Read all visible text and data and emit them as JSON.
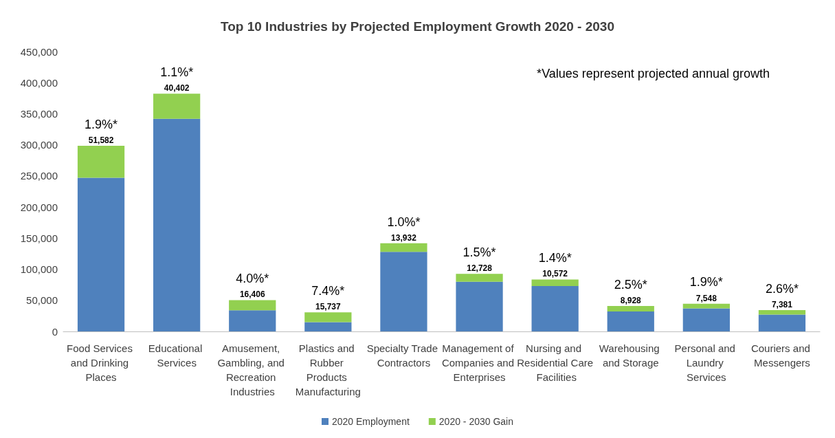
{
  "chart_data": {
    "type": "bar",
    "title": "Top 10 Industries by Projected Employment Growth 2020 - 2030",
    "categories": [
      "Food Services and Drinking Places",
      "Educational Services",
      "Amusement, Gambling, and Recreation Industries",
      "Plastics and Rubber Products Manufacturing",
      "Specialty Trade Contractors",
      "Management of Companies and Enterprises",
      "Nursing and Residential Care Facilities",
      "Warehousing and Storage",
      "Personal and Laundry Services",
      "Couriers and Messengers"
    ],
    "stacked": true,
    "series": [
      {
        "name": "2020 Employment",
        "color": "#4f81bd",
        "values": [
          247000,
          342000,
          34000,
          15000,
          128000,
          80000,
          73000,
          32000,
          37000,
          27000
        ]
      },
      {
        "name": "2020 - 2030 Gain",
        "color": "#92d050",
        "values": [
          51582,
          40402,
          16406,
          15737,
          13932,
          12728,
          10572,
          8928,
          7548,
          7381
        ],
        "value_labels": [
          "51,582",
          "40,402",
          "16,406",
          "15,737",
          "13,932",
          "12,728",
          "10,572",
          "8,928",
          "7,548",
          "7,381"
        ]
      }
    ],
    "ylim": [
      0,
      450000
    ],
    "yticks": [
      {
        "value": 0,
        "label": "0"
      },
      {
        "value": 50000,
        "label": "50,000"
      },
      {
        "value": 100000,
        "label": "100,000"
      },
      {
        "value": 150000,
        "label": "150,000"
      },
      {
        "value": 200000,
        "label": "200,000"
      },
      {
        "value": 250000,
        "label": "250,000"
      },
      {
        "value": 300000,
        "label": "300,000"
      },
      {
        "value": 350000,
        "label": "350,000"
      },
      {
        "value": 400000,
        "label": "400,000"
      },
      {
        "value": 450000,
        "label": "450,000"
      }
    ],
    "grid": false,
    "legend": "bottom",
    "annotations": [
      "*Values represent projected annual growth",
      {
        "text": "1.9%*",
        "x": "Food Services and Drinking Places",
        "y": 298582
      },
      {
        "text": "1.1%*",
        "x": "Educational Services",
        "y": 382402
      },
      {
        "text": "4.0%*",
        "x": "Amusement, Gambling, and Recreation Industries",
        "y": 50406
      },
      {
        "text": "7.4%*",
        "x": "Plastics and Rubber Products Manufacturing",
        "y": 30737
      },
      {
        "text": "1.0%*",
        "x": "Specialty Trade Contractors",
        "y": 141932
      },
      {
        "text": "1.5%*",
        "x": "Management of Companies and Enterprises",
        "y": 92728
      },
      {
        "text": "1.4%*",
        "x": "Nursing and Residential Care Facilities",
        "y": 83572
      },
      {
        "text": "2.5%*",
        "x": "Warehousing and Storage",
        "y": 40928
      },
      {
        "text": "1.9%*",
        "x": "Personal and Laundry Services",
        "y": 45048
      },
      {
        "text": "2.6%*",
        "x": "Couriers and Messengers",
        "y": 33881
      }
    ]
  }
}
